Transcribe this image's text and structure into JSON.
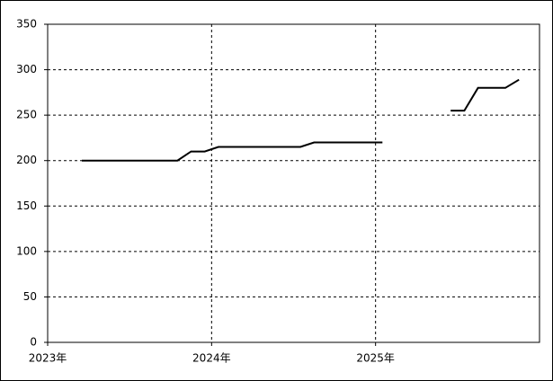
{
  "chart_data": {
    "type": "line",
    "categories": [
      "2023年",
      null,
      null,
      null,
      null,
      null,
      null,
      null,
      null,
      null,
      null,
      null,
      "2024年",
      null,
      null,
      null,
      null,
      null,
      null,
      null,
      null,
      null,
      null,
      null,
      "2025年",
      null,
      null,
      null,
      null,
      null,
      null,
      null,
      null,
      null,
      null,
      null
    ],
    "series": [
      {
        "color": "#000000",
        "values": [
          null,
          null,
          200,
          200,
          200,
          200,
          200,
          200,
          200,
          200,
          210,
          210,
          215,
          215,
          215,
          215,
          215,
          215,
          215,
          220,
          220,
          220,
          220,
          220,
          220,
          null,
          null,
          null,
          null,
          255,
          255,
          280,
          280,
          280,
          289,
          null
        ]
      }
    ],
    "ylim": [
      0,
      350
    ],
    "yticks": [
      0,
      50,
      100,
      150,
      200,
      250,
      300,
      350
    ],
    "grid": true
  }
}
